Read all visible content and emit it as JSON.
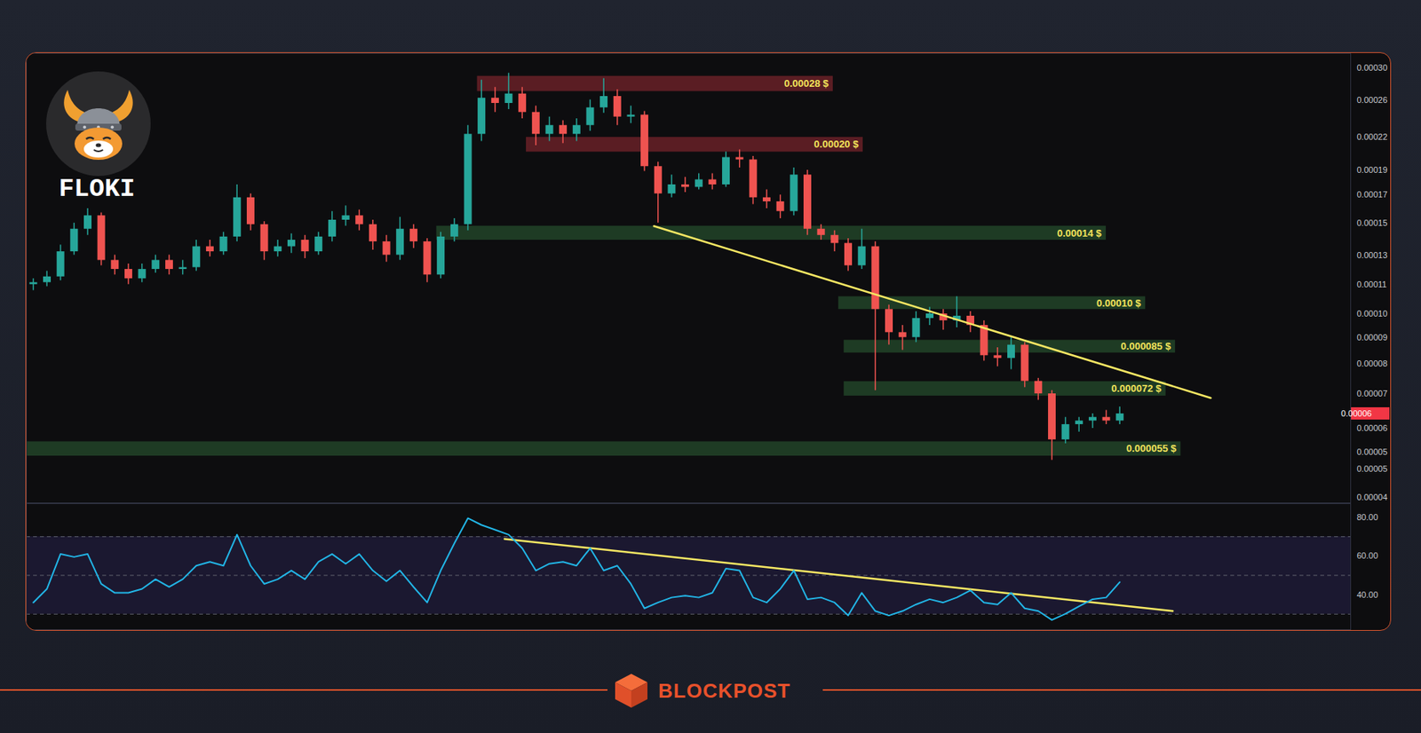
{
  "chart_data": [
    {
      "type": "candlestick",
      "title": "FLOKI",
      "x": [
        0,
        1,
        2,
        3,
        4,
        5,
        6,
        7,
        8,
        9,
        10,
        11,
        12,
        13,
        14,
        15,
        16,
        17,
        18,
        19,
        20,
        21,
        22,
        23,
        24,
        25,
        26,
        27,
        28,
        29,
        30,
        31,
        32,
        33,
        34,
        35,
        36,
        37,
        38,
        39,
        40,
        41,
        42,
        43,
        44,
        45,
        46,
        47,
        48,
        49,
        50,
        51,
        52,
        53,
        54,
        55,
        56,
        57,
        58,
        59,
        60,
        61,
        62,
        63,
        64,
        65,
        66,
        67,
        68,
        69,
        70,
        71,
        72,
        73,
        74,
        75,
        76,
        77,
        78,
        79,
        80
      ],
      "open": [
        0.000114,
        0.000115,
        0.000118,
        0.000132,
        0.000146,
        0.000155,
        0.000127,
        0.000122,
        0.000117,
        0.000122,
        0.000127,
        0.000122,
        0.000123,
        0.000135,
        0.000132,
        0.000141,
        0.000168,
        0.000149,
        0.000132,
        0.000135,
        0.000139,
        0.000132,
        0.000141,
        0.000152,
        0.000155,
        0.000149,
        0.000138,
        0.00013,
        0.000146,
        0.000138,
        0.000119,
        0.000141,
        0.000149,
        0.000223,
        0.000262,
        0.000256,
        0.000267,
        0.000246,
        0.000223,
        0.000232,
        0.000223,
        0.000232,
        0.000251,
        0.000264,
        0.000241,
        0.000243,
        0.000193,
        0.000171,
        0.000178,
        0.000176,
        0.000182,
        0.000178,
        0.000201,
        0.000199,
        0.000168,
        0.000165,
        0.000158,
        0.000186,
        0.000146,
        0.000142,
        0.000137,
        0.000124,
        0.000135,
        0.000102,
        9.2e-05,
        9e-05,
        9.8e-05,
        0.0001,
        9.7e-05,
        9.9e-05,
        9.5e-05,
        8.3e-05,
        8.2e-05,
        8.7e-05,
        7.4e-05,
        7e-05,
        5.7e-05,
        6.1e-05,
        6.2e-05,
        6.3e-05,
        6.2e-05
      ],
      "high": [
        0.000117,
        0.000121,
        0.000136,
        0.00015,
        0.00016,
        0.000157,
        0.00013,
        0.000125,
        0.000125,
        0.00013,
        0.00013,
        0.000127,
        0.000139,
        0.000139,
        0.000144,
        0.000178,
        0.000171,
        0.000151,
        0.000139,
        0.000143,
        0.000142,
        0.000144,
        0.000158,
        0.000162,
        0.000159,
        0.000152,
        0.000142,
        0.000154,
        0.000149,
        0.00014,
        0.000144,
        0.000153,
        0.000232,
        0.000284,
        0.000275,
        0.000293,
        0.000275,
        0.000253,
        0.000241,
        0.000237,
        0.000239,
        0.00026,
        0.000286,
        0.000272,
        0.000253,
        0.000247,
        0.000197,
        0.000186,
        0.000184,
        0.000187,
        0.000187,
        0.000206,
        0.000208,
        0.000202,
        0.000174,
        0.00017,
        0.000192,
        0.00019,
        0.000149,
        0.000145,
        0.00014,
        0.000146,
        0.000138,
        0.000104,
        9.5e-05,
        0.000101,
        0.000103,
        0.000102,
        0.000108,
        0.000101,
        9.7e-05,
        8.6e-05,
        9e-05,
        8.8e-05,
        7.5e-05,
        7.1e-05,
        6.3e-05,
        6.3e-05,
        6.4e-05,
        6.5e-05,
        6.6e-05
      ],
      "low": [
        0.000111,
        0.000113,
        0.000116,
        0.00013,
        0.000142,
        0.000124,
        0.000119,
        0.000114,
        0.000115,
        0.00012,
        0.000119,
        0.000119,
        0.000121,
        0.000129,
        0.00013,
        0.000138,
        0.000145,
        0.000127,
        0.000129,
        0.000131,
        0.000128,
        0.00013,
        0.000138,
        0.000148,
        0.000145,
        0.000133,
        0.000126,
        0.000127,
        0.000134,
        0.000115,
        0.000117,
        0.000138,
        0.000145,
        0.000216,
        0.000246,
        0.000249,
        0.000239,
        0.000212,
        0.000216,
        0.000214,
        0.000216,
        0.000226,
        0.000245,
        0.000232,
        0.000234,
        0.000189,
        0.00015,
        0.000168,
        0.000172,
        0.000174,
        0.000174,
        0.000176,
        0.000192,
        0.000163,
        0.00016,
        0.000153,
        0.000155,
        0.000142,
        0.000139,
        0.000132,
        0.000121,
        0.000122,
        7.1e-05,
        8.7e-05,
        8.5e-05,
        8.8e-05,
        9.5e-05,
        9.3e-05,
        9.4e-05,
        9.2e-05,
        8.1e-05,
        7.9e-05,
        7.8e-05,
        7.2e-05,
        6.8e-05,
        5.2e-05,
        5.6e-05,
        5.9e-05,
        6e-05,
        6.1e-05,
        6.1e-05
      ],
      "close": [
        0.000115,
        0.000118,
        0.000132,
        0.000146,
        0.000155,
        0.000127,
        0.000122,
        0.000117,
        0.000122,
        0.000127,
        0.000122,
        0.000123,
        0.000135,
        0.000132,
        0.000141,
        0.000168,
        0.000149,
        0.000132,
        0.000135,
        0.000139,
        0.000132,
        0.000141,
        0.000152,
        0.000155,
        0.000149,
        0.000138,
        0.00013,
        0.000146,
        0.000138,
        0.000119,
        0.000141,
        0.000149,
        0.000223,
        0.000262,
        0.000256,
        0.000267,
        0.000246,
        0.000223,
        0.000232,
        0.000223,
        0.000232,
        0.000251,
        0.000264,
        0.000241,
        0.000243,
        0.000193,
        0.000171,
        0.000178,
        0.000176,
        0.000182,
        0.000178,
        0.000201,
        0.000199,
        0.000168,
        0.000165,
        0.000158,
        0.000186,
        0.000146,
        0.000142,
        0.000137,
        0.000124,
        0.000135,
        0.000102,
        9.2e-05,
        9e-05,
        9.8e-05,
        0.0001,
        9.7e-05,
        9.9e-05,
        9.5e-05,
        8.3e-05,
        8.2e-05,
        8.7e-05,
        7.4e-05,
        7e-05,
        5.7e-05,
        6.1e-05,
        6.2e-05,
        6.3e-05,
        6.2e-05,
        6.4e-05
      ],
      "colors": [
        "#26a69a",
        "#26a69a",
        "#26a69a",
        "#26a69a",
        "#26a69a",
        "#ef5350",
        "#ef5350",
        "#ef5350",
        "#26a69a",
        "#26a69a",
        "#ef5350",
        "#26a69a",
        "#26a69a",
        "#ef5350",
        "#26a69a",
        "#26a69a",
        "#ef5350",
        "#ef5350",
        "#26a69a",
        "#26a69a",
        "#ef5350",
        "#26a69a",
        "#26a69a",
        "#26a69a",
        "#ef5350",
        "#ef5350",
        "#ef5350",
        "#26a69a",
        "#ef5350",
        "#ef5350",
        "#26a69a",
        "#26a69a",
        "#26a69a",
        "#26a69a",
        "#ef5350",
        "#26a69a",
        "#ef5350",
        "#ef5350",
        "#26a69a",
        "#ef5350",
        "#26a69a",
        "#26a69a",
        "#26a69a",
        "#ef5350",
        "#26a69a",
        "#ef5350",
        "#ef5350",
        "#26a69a",
        "#ef5350",
        "#26a69a",
        "#ef5350",
        "#26a69a",
        "#ef5350",
        "#ef5350",
        "#ef5350",
        "#ef5350",
        "#26a69a",
        "#ef5350",
        "#ef5350",
        "#ef5350",
        "#ef5350",
        "#26a69a",
        "#ef5350",
        "#ef5350",
        "#ef5350",
        "#26a69a",
        "#26a69a",
        "#ef5350",
        "#26a69a",
        "#ef5350",
        "#ef5350",
        "#ef5350",
        "#26a69a",
        "#ef5350",
        "#ef5350",
        "#ef5350",
        "#26a69a",
        "#26a69a",
        "#26a69a",
        "#ef5350",
        "#26a69a"
      ],
      "log": "y",
      "grid": false,
      "tick_labels": "y",
      "xlim": [
        -0.5,
        97
      ],
      "ylim": [
        4.3e-05,
        0.00032
      ],
      "yticks": [
        {
          "value": 0.0003,
          "label": "0.00030"
        },
        0.00026,
        0.00022,
        0.00019,
        0.00017,
        0.00015,
        0.00013,
        {
          "value": 0.000114,
          "label": "0.00011"
        },
        {
          "value": 0.0001,
          "label": "0.00010"
        },
        9e-05,
        8e-05,
        7e-05,
        6e-05,
        {
          "value": 5.4e-05,
          "label": "0.00005"
        },
        5e-05,
        {
          "value": 4.4e-05,
          "label": "0.00004"
        }
      ],
      "current_price": {
        "value": 6.4e-05,
        "label": "0.00006",
        "color": "#f23645"
      },
      "zones": [
        {
          "label": "0.00028 $",
          "value": 0.00028,
          "low": 0.00027,
          "high": 0.000289,
          "x0": 32.7,
          "x1": 58.9,
          "color": "#5a1d23"
        },
        {
          "label": "0.00020 $",
          "value": 0.0002,
          "low": 0.000206,
          "high": 0.00022,
          "x0": 36.3,
          "x1": 61.1,
          "color": "#5a1d23"
        },
        {
          "label": "0.00014 $",
          "value": 0.00014,
          "low": 0.000139,
          "high": 0.000148,
          "x0": 29.7,
          "x1": 79.0,
          "color": "#1e3b24"
        },
        {
          "label": "0.00010 $",
          "value": 0.0001,
          "low": 0.000102,
          "high": 0.000108,
          "x0": 59.3,
          "x1": 81.9,
          "color": "#1e3b24"
        },
        {
          "label": "0.000085 $",
          "value": 8.5e-05,
          "low": 8.4e-05,
          "high": 8.89e-05,
          "x0": 59.7,
          "x1": 84.1,
          "color": "#1e3b24"
        },
        {
          "label": "0.000072 $",
          "value": 7.2e-05,
          "low": 6.93e-05,
          "high": 7.39e-05,
          "x0": 59.7,
          "x1": 83.4,
          "color": "#1e3b24"
        },
        {
          "label": "0.000055 $",
          "value": 5.5e-05,
          "low": 5.3e-05,
          "high": 5.65e-05,
          "x0": -0.5,
          "x1": 84.5,
          "color": "#1e3b24"
        }
      ],
      "trendline": {
        "x": [
          45.7,
          86.7
        ],
        "y": [
          0.000148,
          6.87e-05
        ],
        "color": "#f5e663"
      }
    },
    {
      "type": "line",
      "x": [
        0,
        1,
        2,
        3,
        4,
        5,
        6,
        7,
        8,
        9,
        10,
        11,
        12,
        13,
        14,
        15,
        16,
        17,
        18,
        19,
        20,
        21,
        22,
        23,
        24,
        25,
        26,
        27,
        28,
        29,
        30,
        31,
        32,
        33,
        34,
        35,
        36,
        37,
        38,
        39,
        40,
        41,
        42,
        43,
        44,
        45,
        46,
        47,
        48,
        49,
        50,
        51,
        52,
        53,
        54,
        55,
        56,
        57,
        58,
        59,
        60,
        61,
        62,
        63,
        64,
        65,
        66,
        67,
        68,
        69,
        70,
        71,
        72,
        73,
        74,
        75,
        76,
        77,
        78,
        79,
        80
      ],
      "values": [
        36,
        43,
        61,
        59.5,
        61,
        45.6,
        41,
        41,
        43,
        48,
        44,
        48,
        55,
        57,
        55,
        71,
        55,
        45.6,
        48,
        52.5,
        48,
        57,
        61,
        56,
        61,
        52.5,
        47,
        52.5,
        44,
        36,
        52.5,
        66.5,
        79.5,
        76,
        73.5,
        71,
        64,
        52.5,
        56,
        57,
        55,
        64,
        52.5,
        55,
        45.6,
        33,
        36,
        38.6,
        39.5,
        38.6,
        41,
        53.5,
        52.5,
        38.6,
        36,
        43,
        52.5,
        37.7,
        38.6,
        36,
        29.3,
        41,
        31.6,
        29.3,
        31.6,
        35,
        37.7,
        36,
        38.6,
        42.3,
        36,
        35,
        41,
        33,
        31.6,
        27,
        30.2,
        34,
        37.7,
        38.6,
        46.5
      ],
      "color": "#22b5e6",
      "grid": false,
      "tick_labels": "y",
      "xlim": [
        -0.5,
        97
      ],
      "ylim": [
        22,
        87
      ],
      "yticks": [
        {
          "value": 80,
          "label": "80.00"
        },
        {
          "value": 60,
          "label": "60.00"
        },
        {
          "value": 40,
          "label": "40.00"
        }
      ],
      "band": [
        30,
        70
      ],
      "levels": [
        30,
        50,
        70
      ],
      "trendline": {
        "x": [
          34.7,
          83.9
        ],
        "y": [
          68.8,
          31.6
        ],
        "color": "#f5e663"
      }
    }
  ],
  "footer": {
    "text": "BLOCKPOST"
  }
}
